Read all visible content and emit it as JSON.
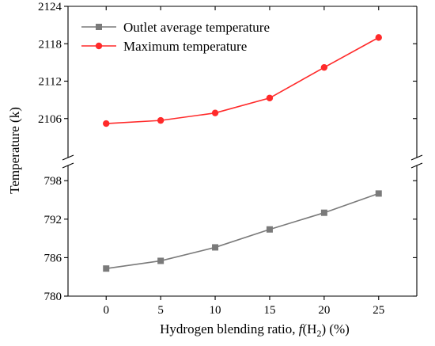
{
  "chart_data": {
    "type": "line",
    "x": [
      0,
      5,
      10,
      15,
      20,
      25
    ],
    "x_ticks": [
      "0",
      "5",
      "10",
      "15",
      "20",
      "25"
    ],
    "xlim": [
      -3.5,
      28.5
    ],
    "xlabel": {
      "prefix": "Hydrogen blending ratio, ",
      "italic": "f",
      "paren_open": "(H",
      "subscript": "2",
      "suffix": ") (%)"
    },
    "ylabel": "Temperature (k)",
    "axis_break": true,
    "y_segments": {
      "upper": {
        "ylim": [
          2100,
          2124
        ],
        "ticks": [
          "2106",
          "2112",
          "2118",
          "2124"
        ]
      },
      "lower": {
        "ylim": [
          780,
          800
        ],
        "ticks": [
          "780",
          "786",
          "792",
          "798"
        ]
      }
    },
    "series": [
      {
        "name": "Outlet average temperature",
        "segment": "lower",
        "values": [
          784.3,
          785.5,
          787.6,
          790.4,
          793.0,
          796.0
        ],
        "color": "#7a7a7a",
        "marker": "square"
      },
      {
        "name": "Maximum temperature",
        "segment": "upper",
        "values": [
          2105.2,
          2105.7,
          2106.9,
          2109.3,
          2114.2,
          2119.0
        ],
        "color": "#ff2a2a",
        "marker": "circle"
      }
    ],
    "legend_position": "top-left",
    "grid": false
  }
}
